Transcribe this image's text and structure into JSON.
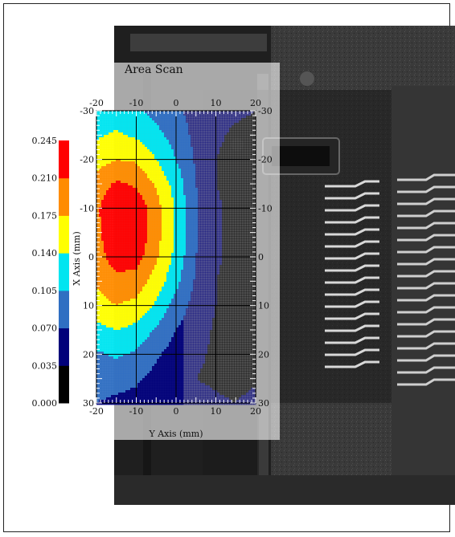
{
  "chart_data": {
    "type": "heatmap",
    "title": "Area Scan",
    "xlabel": "Y Axis (mm)",
    "ylabel": "X Axis (mm)",
    "x_ticks": [
      "-20",
      "-10",
      "0",
      "10",
      "20"
    ],
    "y_ticks": [
      "-30",
      "-20",
      "-10",
      "0",
      "10",
      "20",
      "30"
    ],
    "xlim": [
      -20,
      20
    ],
    "ylim": [
      -30,
      30
    ],
    "x": [
      -20,
      -15,
      -10,
      -5,
      0,
      5,
      10,
      15,
      20
    ],
    "y": [
      -30,
      -25,
      -20,
      -15,
      -10,
      -5,
      0,
      5,
      10,
      15,
      20,
      25,
      30
    ],
    "z": [
      [
        0.105,
        0.12,
        0.11,
        0.095,
        0.075,
        0.06,
        0.045,
        0.04,
        0.035
      ],
      [
        0.135,
        0.145,
        0.135,
        0.115,
        0.09,
        0.06,
        0.04,
        0.03,
        0.025
      ],
      [
        0.16,
        0.175,
        0.17,
        0.14,
        0.105,
        0.065,
        0.035,
        0.025,
        0.02
      ],
      [
        0.19,
        0.215,
        0.205,
        0.17,
        0.125,
        0.07,
        0.035,
        0.025,
        0.015
      ],
      [
        0.205,
        0.24,
        0.235,
        0.19,
        0.135,
        0.075,
        0.04,
        0.025,
        0.015
      ],
      [
        0.2,
        0.24,
        0.24,
        0.19,
        0.135,
        0.075,
        0.04,
        0.025,
        0.015
      ],
      [
        0.195,
        0.228,
        0.225,
        0.18,
        0.13,
        0.07,
        0.04,
        0.025,
        0.015
      ],
      [
        0.18,
        0.2,
        0.195,
        0.16,
        0.115,
        0.065,
        0.035,
        0.025,
        0.015
      ],
      [
        0.16,
        0.175,
        0.165,
        0.135,
        0.09,
        0.055,
        0.035,
        0.02,
        0.015
      ],
      [
        0.13,
        0.14,
        0.13,
        0.1,
        0.07,
        0.05,
        0.03,
        0.02,
        0.015
      ],
      [
        0.1,
        0.11,
        0.1,
        0.075,
        0.055,
        0.04,
        0.03,
        0.02,
        0.02
      ],
      [
        0.08,
        0.08,
        0.075,
        0.06,
        0.045,
        0.035,
        0.03,
        0.025,
        0.03
      ],
      [
        0.07,
        0.065,
        0.06,
        0.05,
        0.045,
        0.045,
        0.04,
        0.035,
        0.045
      ]
    ],
    "colorbar": {
      "labels": [
        "0.245",
        "0.210",
        "0.175",
        "0.140",
        "0.105",
        "0.070",
        "0.035",
        "0.000"
      ],
      "levels": [
        0.0,
        0.035,
        0.07,
        0.105,
        0.14,
        0.175,
        0.21,
        0.245
      ],
      "colors": [
        "#000000",
        "#00007a",
        "#2f6fc2",
        "#00e5f0",
        "#ffff00",
        "#ff8c00",
        "#ff0000"
      ]
    },
    "grid": true
  },
  "colors": {
    "background": "#ffffff",
    "device_dark": "#2c2c2c",
    "device_mid": "#3e3e3e"
  }
}
